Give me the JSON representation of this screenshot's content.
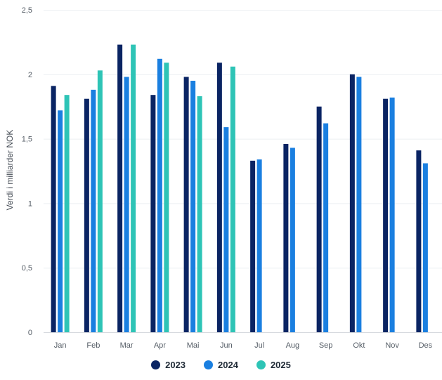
{
  "chart_data": {
    "type": "bar",
    "ylabel": "Verdi i milliarder NOK",
    "ylim": [
      0,
      2.5
    ],
    "yticks": [
      {
        "value": 0,
        "label": "0"
      },
      {
        "value": 0.5,
        "label": "0,5"
      },
      {
        "value": 1,
        "label": "1"
      },
      {
        "value": 1.5,
        "label": "1,5"
      },
      {
        "value": 2,
        "label": "2"
      },
      {
        "value": 2.5,
        "label": "2,5"
      }
    ],
    "grid": true,
    "legend_position": "bottom",
    "categories": [
      "Jan",
      "Feb",
      "Mar",
      "Apr",
      "Mai",
      "Jun",
      "Jul",
      "Aug",
      "Sep",
      "Okt",
      "Nov",
      "Des"
    ],
    "series": [
      {
        "name": "2023",
        "color": "#0a2463",
        "values": [
          1.91,
          1.81,
          2.23,
          1.84,
          1.98,
          2.09,
          1.33,
          1.46,
          1.75,
          2.0,
          1.81,
          1.41
        ]
      },
      {
        "name": "2024",
        "color": "#1a7fe0",
        "values": [
          1.72,
          1.88,
          1.98,
          2.12,
          1.95,
          1.59,
          1.34,
          1.43,
          1.62,
          1.98,
          1.82,
          1.31
        ]
      },
      {
        "name": "2025",
        "color": "#2ec4b6",
        "values": [
          1.84,
          2.03,
          2.23,
          2.09,
          1.83,
          2.06,
          null,
          null,
          null,
          null,
          null,
          null
        ]
      }
    ]
  }
}
